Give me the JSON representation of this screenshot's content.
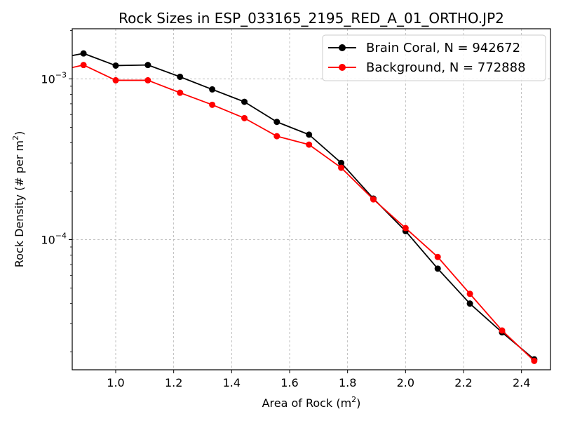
{
  "chart_data": {
    "type": "line",
    "title": "Rock Sizes in ESP_033165_2195_RED_A_01_ORTHO.JP2",
    "xlabel": "Area of Rock (m",
    "xlabel_sup": "2",
    "xlabel_end": ")",
    "ylabel": "Rock Density (# per m",
    "ylabel_sup": "2",
    "ylabel_end": ")",
    "xlim": [
      0.85,
      2.5
    ],
    "ylim": [
      1.55e-05,
      0.00205
    ],
    "yscale": "log",
    "grid": true,
    "legend_position": "top-right",
    "x_ticks": [
      {
        "value": 1.0,
        "label": "1.0"
      },
      {
        "value": 1.2,
        "label": "1.2"
      },
      {
        "value": 1.4,
        "label": "1.4"
      },
      {
        "value": 1.6,
        "label": "1.6"
      },
      {
        "value": 1.8,
        "label": "1.8"
      },
      {
        "value": 2.0,
        "label": "2.0"
      },
      {
        "value": 2.2,
        "label": "2.2"
      },
      {
        "value": 2.4,
        "label": "2.4"
      }
    ],
    "y_ticks": [
      {
        "value": 0.0001,
        "base": "10",
        "exp": "−4"
      },
      {
        "value": 0.001,
        "base": "10",
        "exp": "−3"
      }
    ],
    "series": [
      {
        "name": "Brain Coral, N = 942672",
        "color": "#000000",
        "x": [
          0.778,
          0.889,
          1.0,
          1.111,
          1.222,
          1.333,
          1.444,
          1.556,
          1.667,
          1.778,
          1.889,
          2.0,
          2.111,
          2.222,
          2.333,
          2.444
        ],
        "y": [
          0.00132,
          0.00144,
          0.00121,
          0.00122,
          0.00103,
          0.00086,
          0.00072,
          0.00054,
          0.00045,
          0.0003,
          0.00018,
          0.000113,
          6.6e-05,
          4e-05,
          2.65e-05,
          1.8e-05
        ]
      },
      {
        "name": "Background, N = 772888",
        "color": "#ff0000",
        "x": [
          0.778,
          0.889,
          1.0,
          1.111,
          1.222,
          1.333,
          1.444,
          1.556,
          1.667,
          1.778,
          1.889,
          2.0,
          2.111,
          2.222,
          2.333,
          2.444
        ],
        "y": [
          0.0011,
          0.00122,
          0.00098,
          0.00098,
          0.00082,
          0.00069,
          0.00057,
          0.00044,
          0.00039,
          0.00028,
          0.000178,
          0.000118,
          7.8e-05,
          4.6e-05,
          2.72e-05,
          1.76e-05
        ]
      }
    ]
  }
}
